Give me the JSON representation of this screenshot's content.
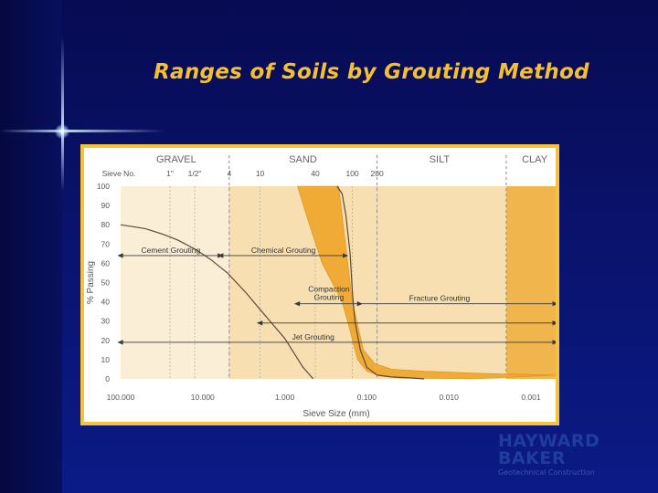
{
  "slide": {
    "title": "Ranges of Soils by Grouting Method"
  },
  "colors": {
    "background": "#0a1470",
    "title": "#f5c030",
    "frame": "#f5c23a",
    "band_light": "#fbeed6",
    "band_mid": "#f7dfb2",
    "band_dark": "#f0b54d",
    "soil_band": "#f0a830",
    "logo": "#1f3d9c"
  },
  "logo": {
    "line1": "HAYWARD",
    "line2": "BAKER",
    "tagline": "Geotechnical Construction"
  },
  "chart_data": {
    "type": "line",
    "title": "",
    "xlabel": "Sieve Size (mm)",
    "ylabel": "% Passing",
    "x_scale": "log",
    "x_reversed": true,
    "xlim": [
      100,
      0.0005
    ],
    "ylim": [
      0,
      100
    ],
    "x_ticks": [
      {
        "value": 100,
        "label": "100.000"
      },
      {
        "value": 10,
        "label": "10.000"
      },
      {
        "value": 1,
        "label": "1.000"
      },
      {
        "value": 0.1,
        "label": "0.100"
      },
      {
        "value": 0.01,
        "label": "0.010"
      },
      {
        "value": 0.001,
        "label": "0.001"
      }
    ],
    "y_ticks": [
      0,
      10,
      20,
      30,
      40,
      50,
      60,
      70,
      80,
      90,
      100
    ],
    "grid": false,
    "soil_classes": [
      {
        "label": "GRAVEL",
        "from": 100,
        "to": 4.75,
        "center": 21
      },
      {
        "label": "SAND",
        "from": 4.75,
        "to": 0.075,
        "center": 0.6
      },
      {
        "label": "SILT",
        "from": 0.075,
        "to": 0.002,
        "center": 0.013
      },
      {
        "label": "CLAY",
        "from": 0.002,
        "to": 0.0005,
        "center": 0.0009
      }
    ],
    "sieve_header": "Sieve No.",
    "sieves": [
      {
        "label": "1\"",
        "size": 25
      },
      {
        "label": "1/2\"",
        "size": 12.5
      },
      {
        "label": "4",
        "size": 4.75
      },
      {
        "label": "10",
        "size": 2.0
      },
      {
        "label": "40",
        "size": 0.425
      },
      {
        "label": "100",
        "size": 0.15
      },
      {
        "label": "200",
        "size": 0.075
      }
    ],
    "series": [
      {
        "x": [
          100,
          50,
          30,
          20,
          12,
          8,
          5,
          3,
          2,
          1,
          0.6,
          0.45
        ],
        "y": [
          80,
          78,
          75,
          72,
          67,
          62,
          55,
          45,
          36,
          21,
          6,
          0
        ]
      },
      {
        "x": [
          0.23,
          0.2,
          0.18,
          0.16,
          0.15,
          0.14,
          0.12,
          0.1,
          0.075,
          0.05,
          0.03,
          0.02
        ],
        "y": [
          100,
          96,
          85,
          65,
          45,
          30,
          15,
          6,
          2,
          1,
          0.5,
          0
        ]
      }
    ],
    "bands": [
      {
        "upper": {
          "x": [
            0.55,
            0.3,
            0.22,
            0.15,
            0.11,
            0.08,
            0.05,
            0.02,
            0.01,
            0.005,
            0.002,
            0.0005
          ],
          "y": [
            100,
            100,
            100,
            40,
            15,
            8,
            5,
            4,
            3.5,
            3,
            2.5,
            2
          ]
        },
        "lower": {
          "x": [
            0.7,
            0.5,
            0.35,
            0.2,
            0.16,
            0.13,
            0.1,
            0.07,
            0.04,
            0.01,
            0.005
          ],
          "y": [
            100,
            80,
            60,
            40,
            25,
            10,
            4,
            1.5,
            0.5,
            0.2,
            0
          ]
        }
      }
    ],
    "annotations": [
      {
        "text": "Cement Grouting",
        "x_from": 100,
        "x_to": 6,
        "y": 64,
        "arrows": "both"
      },
      {
        "text": "Chemical Grouting",
        "x_from": 6,
        "x_to": 0.18,
        "y": 64,
        "arrows": "both"
      },
      {
        "text": "Compaction Grouting",
        "text2": "Grouting",
        "text1": "Compaction",
        "x_from": 0.7,
        "x_to": 0.12,
        "y": 39,
        "arrows": "both"
      },
      {
        "text": "Fracture Grouting",
        "x_from": 0.12,
        "x_to": 0.0005,
        "y": 39,
        "arrows": "right"
      },
      {
        "text": "Jet Grouting",
        "x_from": 100,
        "x_to": 0.0005,
        "y": 19,
        "arrows": "both"
      },
      {
        "text": "",
        "x_from": 2,
        "x_to": 0.0005,
        "y": 29,
        "arrows": "both"
      }
    ]
  }
}
